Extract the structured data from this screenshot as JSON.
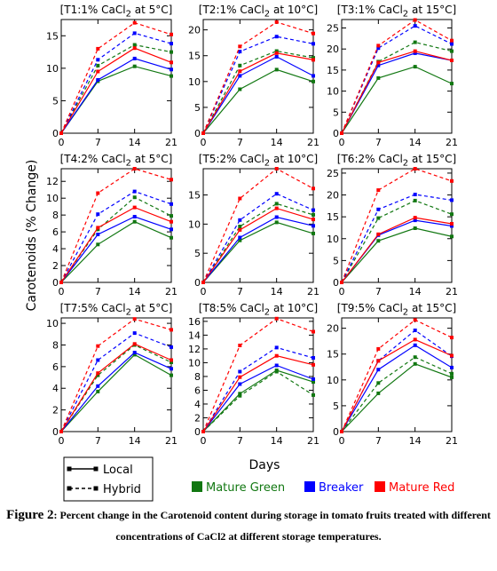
{
  "ylabel": "Carotenoids  (% Change)",
  "xlabel": "Days",
  "legend": {
    "line_styles": [
      "Local",
      "Hybrid"
    ],
    "colors": [
      {
        "label": "Mature Green",
        "color": "#117711"
      },
      {
        "label": "Breaker",
        "color": "#0000ff"
      },
      {
        "label": "Mature Red",
        "color": "#ff0000"
      }
    ]
  },
  "caption": {
    "figure": "Figure 2",
    "text": ": Percent change in the Carotenoid  content during storage in tomato  fruits treated with different concentrations of CaCl2 at different storage temperatures."
  },
  "chart_data": [
    {
      "type": "line",
      "title_html": "[T1:1% CaCl<sub>2</sub> at 5°C]",
      "x": [
        0,
        7,
        14,
        21
      ],
      "ylim": [
        0,
        17.5
      ],
      "yticks": [
        0,
        5,
        10,
        15
      ],
      "series": [
        {
          "name": "Mature Green",
          "line": "Local",
          "values": [
            0,
            8,
            10.3,
            8.8
          ]
        },
        {
          "name": "Mature Green",
          "line": "Hybrid",
          "values": [
            0,
            10.4,
            13.6,
            12.5
          ]
        },
        {
          "name": "Breaker",
          "line": "Local",
          "values": [
            0,
            8.2,
            11.5,
            9.8
          ]
        },
        {
          "name": "Breaker",
          "line": "Hybrid",
          "values": [
            0,
            11.3,
            15.4,
            13.8
          ]
        },
        {
          "name": "Mature Red",
          "line": "Local",
          "values": [
            0,
            9.5,
            13.1,
            10.9
          ]
        },
        {
          "name": "Mature Red",
          "line": "Hybrid",
          "values": [
            0,
            13,
            17,
            15.2
          ]
        }
      ]
    },
    {
      "type": "line",
      "title_html": "[T2:1% CaCl<sub>2</sub> at 10°C]",
      "x": [
        0,
        7,
        14,
        21
      ],
      "ylim": [
        0,
        22
      ],
      "yticks": [
        0,
        5,
        10,
        15,
        20
      ],
      "series": [
        {
          "name": "Mature Green",
          "line": "Local",
          "values": [
            0,
            8.5,
            12.3,
            10
          ]
        },
        {
          "name": "Mature Green",
          "line": "Hybrid",
          "values": [
            0,
            13.1,
            15.9,
            14.6
          ]
        },
        {
          "name": "Breaker",
          "line": "Local",
          "values": [
            0,
            11.1,
            14.8,
            11.1
          ]
        },
        {
          "name": "Breaker",
          "line": "Hybrid",
          "values": [
            0,
            15.8,
            18.7,
            17.3
          ]
        },
        {
          "name": "Mature Red",
          "line": "Local",
          "values": [
            0,
            12,
            15.5,
            14.2
          ]
        },
        {
          "name": "Mature Red",
          "line": "Hybrid",
          "values": [
            0,
            16.8,
            21.5,
            19.3
          ]
        }
      ]
    },
    {
      "type": "line",
      "title_html": "[T3:1% CaCl<sub>2</sub> at 15°C]",
      "x": [
        0,
        7,
        14,
        21
      ],
      "ylim": [
        0,
        27
      ],
      "yticks": [
        0,
        5,
        10,
        15,
        20,
        25
      ],
      "series": [
        {
          "name": "Mature Green",
          "line": "Local",
          "values": [
            0,
            13.1,
            15.8,
            11.8
          ]
        },
        {
          "name": "Mature Green",
          "line": "Hybrid",
          "values": [
            0,
            17,
            21.6,
            19.5
          ]
        },
        {
          "name": "Breaker",
          "line": "Local",
          "values": [
            0,
            16.1,
            19,
            17.3
          ]
        },
        {
          "name": "Breaker",
          "line": "Hybrid",
          "values": [
            0,
            20.2,
            25.5,
            21.2
          ]
        },
        {
          "name": "Mature Red",
          "line": "Local",
          "values": [
            0,
            16.8,
            19.5,
            17.3
          ]
        },
        {
          "name": "Mature Red",
          "line": "Hybrid",
          "values": [
            0,
            20.8,
            26.9,
            22
          ]
        }
      ]
    },
    {
      "type": "line",
      "title_html": "[T4:2% CaCl<sub>2</sub> at 5°C]",
      "x": [
        0,
        7,
        14,
        21
      ],
      "ylim": [
        0,
        13.5
      ],
      "yticks": [
        0,
        2,
        4,
        6,
        8,
        10,
        12
      ],
      "series": [
        {
          "name": "Mature Green",
          "line": "Local",
          "values": [
            0,
            4.5,
            7.2,
            5.3
          ]
        },
        {
          "name": "Mature Green",
          "line": "Hybrid",
          "values": [
            0,
            6.3,
            10.1,
            7.9
          ]
        },
        {
          "name": "Breaker",
          "line": "Local",
          "values": [
            0,
            5.7,
            7.8,
            6.3
          ]
        },
        {
          "name": "Breaker",
          "line": "Hybrid",
          "values": [
            0,
            8.1,
            10.8,
            9.3
          ]
        },
        {
          "name": "Mature Red",
          "line": "Local",
          "values": [
            0,
            6.5,
            8.9,
            7.2
          ]
        },
        {
          "name": "Mature Red",
          "line": "Hybrid",
          "values": [
            0,
            10.6,
            13.5,
            12.2
          ]
        }
      ]
    },
    {
      "type": "line",
      "title_html": "[T5:2% CaCl<sub>2</sub> at 10°C]",
      "x": [
        0,
        7,
        14,
        21
      ],
      "ylim": [
        0,
        19.5
      ],
      "yticks": [
        0,
        5,
        10,
        15
      ],
      "series": [
        {
          "name": "Mature Green",
          "line": "Local",
          "values": [
            0,
            7.2,
            10.3,
            8.4
          ]
        },
        {
          "name": "Mature Green",
          "line": "Hybrid",
          "values": [
            0,
            9.6,
            13.5,
            11.6
          ]
        },
        {
          "name": "Breaker",
          "line": "Local",
          "values": [
            0,
            7.7,
            11.2,
            9.7
          ]
        },
        {
          "name": "Breaker",
          "line": "Hybrid",
          "values": [
            0,
            10.7,
            15.2,
            12.4
          ]
        },
        {
          "name": "Mature Red",
          "line": "Local",
          "values": [
            0,
            9,
            12.7,
            10.8
          ]
        },
        {
          "name": "Mature Red",
          "line": "Hybrid",
          "values": [
            0,
            14.4,
            19.5,
            16.1
          ]
        }
      ]
    },
    {
      "type": "line",
      "title_html": "[T6:2% CaCl<sub>2</sub> at 15°C]",
      "x": [
        0,
        7,
        14,
        21
      ],
      "ylim": [
        0,
        26
      ],
      "yticks": [
        0,
        5,
        10,
        15,
        20,
        25
      ],
      "series": [
        {
          "name": "Mature Green",
          "line": "Local",
          "values": [
            0,
            9.5,
            12.4,
            10.5
          ]
        },
        {
          "name": "Mature Green",
          "line": "Hybrid",
          "values": [
            0,
            14.7,
            18.7,
            15.6
          ]
        },
        {
          "name": "Breaker",
          "line": "Local",
          "values": [
            0,
            10.8,
            14.2,
            12.9
          ]
        },
        {
          "name": "Breaker",
          "line": "Hybrid",
          "values": [
            0,
            16.7,
            20.1,
            18.8
          ]
        },
        {
          "name": "Mature Red",
          "line": "Local",
          "values": [
            0,
            11,
            14.8,
            13.4
          ]
        },
        {
          "name": "Mature Red",
          "line": "Hybrid",
          "values": [
            0,
            21.1,
            26,
            23.2
          ]
        }
      ]
    },
    {
      "type": "line",
      "title_html": "[T7:5% CaCl<sub>2</sub> at 5°C]",
      "x": [
        0,
        7,
        14,
        21
      ],
      "ylim": [
        0,
        10.5
      ],
      "yticks": [
        0,
        2,
        4,
        6,
        8,
        10
      ],
      "series": [
        {
          "name": "Mature Green",
          "line": "Local",
          "values": [
            0,
            3.7,
            7.1,
            5.2
          ]
        },
        {
          "name": "Mature Green",
          "line": "Hybrid",
          "values": [
            0,
            5.2,
            8,
            6.4
          ]
        },
        {
          "name": "Breaker",
          "line": "Local",
          "values": [
            0,
            4.2,
            7.3,
            5.8
          ]
        },
        {
          "name": "Breaker",
          "line": "Hybrid",
          "values": [
            0,
            6.6,
            9.1,
            7.8
          ]
        },
        {
          "name": "Mature Red",
          "line": "Local",
          "values": [
            0,
            5.4,
            8.1,
            6.6
          ]
        },
        {
          "name": "Mature Red",
          "line": "Hybrid",
          "values": [
            0,
            7.9,
            10.4,
            9.4
          ]
        }
      ]
    },
    {
      "type": "line",
      "title_html": "[T8:5% CaCl<sub>2</sub> at 10°C]",
      "x": [
        0,
        7,
        14,
        21
      ],
      "ylim": [
        0,
        16.5
      ],
      "yticks": [
        0,
        2,
        4,
        6,
        8,
        10,
        12,
        14,
        16
      ],
      "series": [
        {
          "name": "Mature Green",
          "line": "Local",
          "values": [
            0,
            5.5,
            8.9,
            7.2
          ]
        },
        {
          "name": "Mature Green",
          "line": "Hybrid",
          "values": [
            0,
            5.2,
            8.7,
            5.3
          ]
        },
        {
          "name": "Breaker",
          "line": "Local",
          "values": [
            0,
            6.9,
            9.6,
            7.6
          ]
        },
        {
          "name": "Breaker",
          "line": "Hybrid",
          "values": [
            0,
            8.7,
            12.2,
            10.7
          ]
        },
        {
          "name": "Mature Red",
          "line": "Local",
          "values": [
            0,
            7.9,
            11,
            9.7
          ]
        },
        {
          "name": "Mature Red",
          "line": "Hybrid",
          "values": [
            0,
            12.5,
            16.4,
            14.5
          ]
        }
      ]
    },
    {
      "type": "line",
      "title_html": "[T9:5% CaCl<sub>2</sub> at 15°C]",
      "x": [
        0,
        7,
        14,
        21
      ],
      "ylim": [
        0,
        22
      ],
      "yticks": [
        0,
        5,
        10,
        15,
        20
      ],
      "series": [
        {
          "name": "Mature Green",
          "line": "Local",
          "values": [
            0,
            7.4,
            13.1,
            10.5
          ]
        },
        {
          "name": "Mature Green",
          "line": "Hybrid",
          "values": [
            0,
            9.4,
            14.4,
            11.2
          ]
        },
        {
          "name": "Breaker",
          "line": "Local",
          "values": [
            0,
            12,
            16.7,
            12.4
          ]
        },
        {
          "name": "Breaker",
          "line": "Hybrid",
          "values": [
            0,
            13.7,
            19.6,
            14.6
          ]
        },
        {
          "name": "Mature Red",
          "line": "Local",
          "values": [
            0,
            13.7,
            17.8,
            14.7
          ]
        },
        {
          "name": "Mature Red",
          "line": "Hybrid",
          "values": [
            0,
            16,
            21.6,
            18.2
          ]
        }
      ]
    }
  ]
}
